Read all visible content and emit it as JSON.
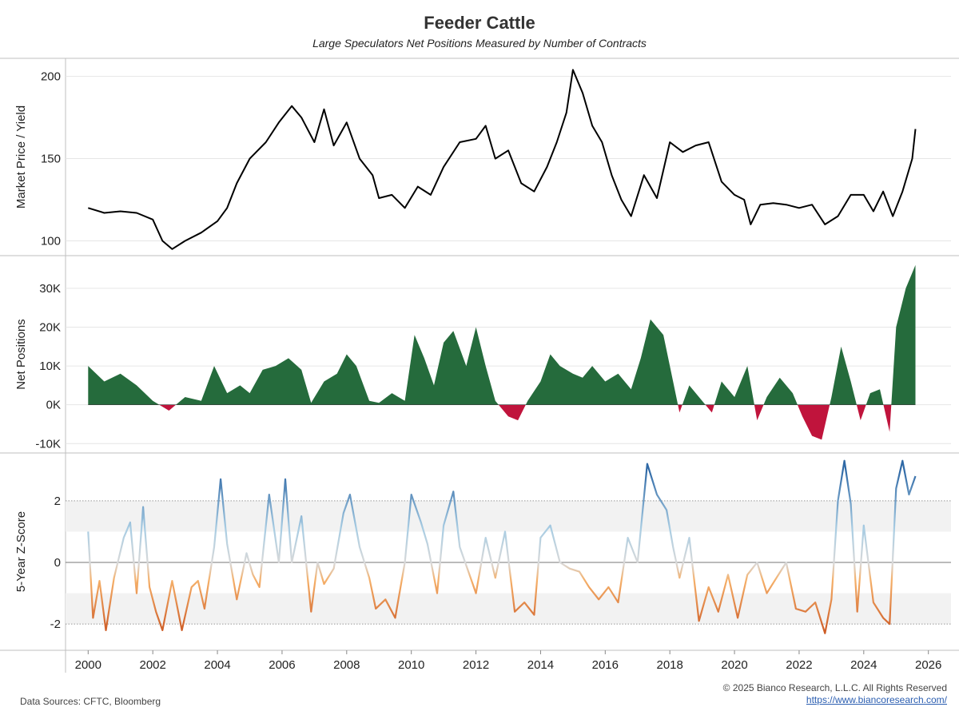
{
  "title": "Feeder Cattle",
  "subtitle": "Large Speculators Net Positions Measured by Number of Contracts",
  "footer": {
    "sources": "Data Sources: CFTC, Bloomberg",
    "copyright": "© 2025 Bianco Research, L.L.C. All Rights Reserved",
    "url": "https://www.biancoresearch.com/"
  },
  "colors": {
    "price_line": "#000000",
    "net_positive": "#256b3c",
    "net_negative": "#c0143c",
    "z_high": "#2f69a6",
    "z_mid_high": "#a9cde3",
    "z_neutral": "#d9d9d9",
    "z_mid_low": "#f5b06a",
    "z_low": "#c8501c",
    "band_fill": "#f2f2f2"
  },
  "chart_data": [
    {
      "type": "line",
      "ylabel": "Market Price / Yield",
      "ylim": [
        92,
        210
      ],
      "yticks": [
        100,
        150,
        200
      ],
      "ytick_labels": [
        "100",
        "150",
        "200"
      ],
      "grid": true,
      "x": [
        2000.0,
        2000.5,
        2001.0,
        2001.5,
        2002.0,
        2002.3,
        2002.6,
        2003.0,
        2003.5,
        2004.0,
        2004.3,
        2004.6,
        2005.0,
        2005.5,
        2005.9,
        2006.3,
        2006.6,
        2007.0,
        2007.3,
        2007.6,
        2008.0,
        2008.4,
        2008.8,
        2009.0,
        2009.4,
        2009.8,
        2010.2,
        2010.6,
        2011.0,
        2011.5,
        2012.0,
        2012.3,
        2012.6,
        2013.0,
        2013.4,
        2013.8,
        2014.2,
        2014.5,
        2014.8,
        2015.0,
        2015.3,
        2015.6,
        2015.9,
        2016.2,
        2016.5,
        2016.8,
        2017.2,
        2017.6,
        2018.0,
        2018.4,
        2018.8,
        2019.2,
        2019.6,
        2020.0,
        2020.3,
        2020.5,
        2020.8,
        2021.2,
        2021.6,
        2022.0,
        2022.4,
        2022.8,
        2023.2,
        2023.6,
        2024.0,
        2024.3,
        2024.6,
        2024.9,
        2025.2,
        2025.5,
        2025.6
      ],
      "y": [
        120,
        117,
        118,
        117,
        113,
        100,
        95,
        100,
        105,
        112,
        120,
        135,
        150,
        160,
        172,
        182,
        175,
        160,
        180,
        158,
        172,
        150,
        140,
        126,
        128,
        120,
        133,
        128,
        145,
        160,
        162,
        170,
        150,
        155,
        135,
        130,
        145,
        160,
        178,
        204,
        190,
        170,
        160,
        140,
        125,
        115,
        140,
        126,
        160,
        154,
        158,
        160,
        136,
        128,
        125,
        110,
        122,
        123,
        122,
        120,
        122,
        110,
        115,
        128,
        128,
        118,
        130,
        115,
        130,
        150,
        168
      ]
    },
    {
      "type": "area",
      "ylabel": "Net Positions",
      "ylim": [
        -12000,
        38000
      ],
      "yticks": [
        -10000,
        0,
        10000,
        20000,
        30000
      ],
      "ytick_labels": [
        "-10K",
        "0K",
        "10K",
        "20K",
        "30K"
      ],
      "grid": true,
      "x": [
        2000.0,
        2000.5,
        2001.0,
        2001.5,
        2002.0,
        2002.5,
        2003.0,
        2003.5,
        2003.9,
        2004.3,
        2004.7,
        2005.0,
        2005.4,
        2005.8,
        2006.2,
        2006.6,
        2006.9,
        2007.3,
        2007.7,
        2008.0,
        2008.3,
        2008.7,
        2009.0,
        2009.4,
        2009.8,
        2010.1,
        2010.4,
        2010.7,
        2011.0,
        2011.3,
        2011.7,
        2012.0,
        2012.3,
        2012.6,
        2013.0,
        2013.3,
        2013.6,
        2014.0,
        2014.3,
        2014.6,
        2015.0,
        2015.3,
        2015.6,
        2016.0,
        2016.4,
        2016.8,
        2017.1,
        2017.4,
        2017.8,
        2018.0,
        2018.3,
        2018.6,
        2019.0,
        2019.3,
        2019.6,
        2020.0,
        2020.4,
        2020.7,
        2021.0,
        2021.4,
        2021.8,
        2022.1,
        2022.4,
        2022.7,
        2023.0,
        2023.3,
        2023.6,
        2023.9,
        2024.2,
        2024.5,
        2024.8,
        2025.0,
        2025.3,
        2025.6
      ],
      "y": [
        10000,
        6000,
        8000,
        5000,
        1000,
        -1500,
        2000,
        1000,
        10000,
        3000,
        5000,
        3000,
        9000,
        10000,
        12000,
        9000,
        500,
        6000,
        8000,
        13000,
        10000,
        1000,
        500,
        3000,
        1000,
        18000,
        12000,
        5000,
        16000,
        19000,
        10000,
        20000,
        10000,
        1000,
        -3000,
        -4000,
        1000,
        6000,
        13000,
        10000,
        8000,
        7000,
        10000,
        6000,
        8000,
        4000,
        12000,
        22000,
        18000,
        10000,
        -2000,
        5000,
        1000,
        -2000,
        6000,
        2000,
        10000,
        -4000,
        2000,
        7000,
        3000,
        -3000,
        -8000,
        -9000,
        2000,
        15000,
        6000,
        -4000,
        3000,
        4000,
        -7000,
        20000,
        30000,
        36000
      ]
    },
    {
      "type": "line",
      "ylabel": "5-Year Z-Score",
      "ylim": [
        -2.8,
        3.5
      ],
      "yticks": [
        -2,
        0,
        2
      ],
      "ytick_labels": [
        "-2",
        "0",
        "2"
      ],
      "bands": [
        [
          1,
          2
        ],
        [
          -2,
          -1
        ]
      ],
      "reference_lines": [
        2,
        0,
        -2
      ],
      "x": [
        2000.0,
        2000.15,
        2000.35,
        2000.55,
        2000.8,
        2001.1,
        2001.3,
        2001.5,
        2001.7,
        2001.9,
        2002.1,
        2002.3,
        2002.6,
        2002.9,
        2003.2,
        2003.4,
        2003.6,
        2003.9,
        2004.1,
        2004.3,
        2004.6,
        2004.9,
        2005.1,
        2005.3,
        2005.6,
        2005.9,
        2006.1,
        2006.3,
        2006.6,
        2006.9,
        2007.1,
        2007.3,
        2007.6,
        2007.9,
        2008.1,
        2008.4,
        2008.7,
        2008.9,
        2009.2,
        2009.5,
        2009.8,
        2010.0,
        2010.3,
        2010.5,
        2010.8,
        2011.0,
        2011.3,
        2011.5,
        2011.8,
        2012.0,
        2012.3,
        2012.6,
        2012.9,
        2013.2,
        2013.5,
        2013.8,
        2014.0,
        2014.3,
        2014.6,
        2014.9,
        2015.2,
        2015.5,
        2015.8,
        2016.1,
        2016.4,
        2016.7,
        2017.0,
        2017.3,
        2017.6,
        2017.9,
        2018.1,
        2018.3,
        2018.6,
        2018.9,
        2019.2,
        2019.5,
        2019.8,
        2020.1,
        2020.4,
        2020.7,
        2021.0,
        2021.3,
        2021.6,
        2021.9,
        2022.2,
        2022.5,
        2022.8,
        2023.0,
        2023.2,
        2023.4,
        2023.6,
        2023.8,
        2024.0,
        2024.3,
        2024.6,
        2024.8,
        2025.0,
        2025.2,
        2025.4,
        2025.6
      ],
      "y": [
        1.0,
        -1.8,
        -0.6,
        -2.2,
        -0.5,
        0.8,
        1.3,
        -1.0,
        1.8,
        -0.8,
        -1.6,
        -2.2,
        -0.6,
        -2.2,
        -0.8,
        -0.6,
        -1.5,
        0.5,
        2.7,
        0.6,
        -1.2,
        0.3,
        -0.4,
        -0.8,
        2.2,
        0.0,
        2.7,
        0.0,
        1.5,
        -1.6,
        0.0,
        -0.7,
        -0.2,
        1.6,
        2.2,
        0.5,
        -0.5,
        -1.5,
        -1.2,
        -1.8,
        0.0,
        2.2,
        1.3,
        0.6,
        -1.0,
        1.2,
        2.3,
        0.5,
        -0.4,
        -1.0,
        0.8,
        -0.5,
        1.0,
        -1.6,
        -1.3,
        -1.7,
        0.8,
        1.2,
        0.0,
        -0.2,
        -0.3,
        -0.8,
        -1.2,
        -0.8,
        -1.3,
        0.8,
        0.0,
        3.2,
        2.2,
        1.7,
        0.5,
        -0.5,
        0.8,
        -1.9,
        -0.8,
        -1.6,
        -0.4,
        -1.8,
        -0.4,
        0.0,
        -1.0,
        -0.5,
        0.0,
        -1.5,
        -1.6,
        -1.3,
        -2.3,
        -1.2,
        2.0,
        3.3,
        1.9,
        -1.6,
        1.2,
        -1.3,
        -1.8,
        -2.0,
        2.4,
        3.3,
        2.2,
        2.8
      ]
    }
  ],
  "x_axis": {
    "ticks": [
      2000,
      2002,
      2004,
      2006,
      2008,
      2010,
      2012,
      2014,
      2016,
      2018,
      2020,
      2022,
      2024,
      2026
    ],
    "labels": [
      "2000",
      "2002",
      "2004",
      "2006",
      "2008",
      "2010",
      "2012",
      "2014",
      "2016",
      "2018",
      "2020",
      "2022",
      "2024",
      "2026"
    ]
  }
}
